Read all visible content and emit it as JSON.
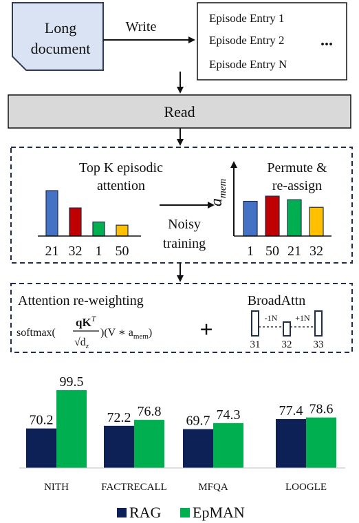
{
  "top": {
    "document_label_line1": "Long",
    "document_label_line2": "document",
    "write_label": "Write",
    "episodes": [
      "Episode Entry 1",
      "Episode Entry 2",
      "Episode Entry N"
    ],
    "ellipsis": "...",
    "read_label": "Read"
  },
  "episodic": {
    "title_line1": "Top K episodic",
    "title_line2": "attention",
    "left_bars": [
      {
        "label": "21",
        "value": 1.0,
        "color": "#4472c4"
      },
      {
        "label": "32",
        "value": 0.62,
        "color": "#c00000"
      },
      {
        "label": "1",
        "value": 0.31,
        "color": "#00b050"
      },
      {
        "label": "50",
        "value": 0.24,
        "color": "#ffc000"
      }
    ],
    "noisy_line1": "Noisy",
    "noisy_line2": "training",
    "axis_label": "a",
    "axis_subscript": "mem",
    "permute_line1": "Permute &",
    "permute_line2": "re-assign",
    "right_bars": [
      {
        "label": "1",
        "value": 0.87,
        "color": "#4472c4"
      },
      {
        "label": "50",
        "value": 1.0,
        "color": "#c00000"
      },
      {
        "label": "21",
        "value": 0.91,
        "color": "#00b050"
      },
      {
        "label": "32",
        "value": 0.72,
        "color": "#ffc000"
      }
    ]
  },
  "reweight": {
    "title": "Attention re-weighting",
    "softmax": "softmax(",
    "numerator": "qK",
    "numerator_sup": "T",
    "denominator": "√d",
    "denominator_sub": "z",
    "rest": ")(V ∗ a",
    "rest_sub": "mem",
    "rest_end": ")",
    "plus": "+",
    "broad_title": "BroadAttn",
    "broad_minus": "-1N",
    "broad_plus": "+1N",
    "broad_labels": [
      "31",
      "32",
      "33"
    ]
  },
  "chart_data": {
    "type": "bar",
    "categories": [
      "NITH",
      "FACTRECALL",
      "MFQA",
      "LOOGLE"
    ],
    "series": [
      {
        "name": "RAG",
        "values": [
          70.2,
          72.2,
          69.7,
          77.4
        ],
        "color": "#0d2157"
      },
      {
        "name": "EpMAN",
        "values": [
          99.5,
          76.8,
          74.3,
          78.6
        ],
        "color": "#00b050"
      }
    ],
    "ylim": [
      40,
      100
    ],
    "legend": "bottom"
  }
}
